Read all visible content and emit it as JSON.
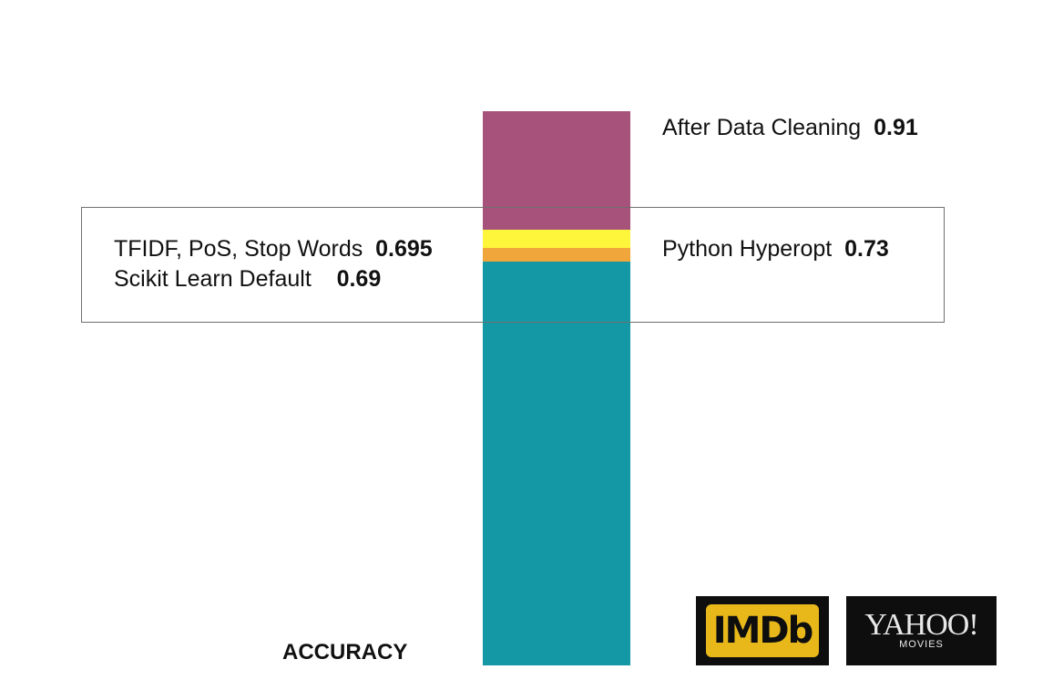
{
  "chart_data": {
    "type": "bar",
    "orientation": "vertical-stacked-single",
    "axis_label": "ACCURACY",
    "ylim": [
      0,
      0.91
    ],
    "segments": [
      {
        "label": "Scikit Learn Default",
        "value": 0.69,
        "color": "#1598a6"
      },
      {
        "label": "TFIDF, PoS, Stop Words",
        "value": 0.695,
        "color": "#f0a63a"
      },
      {
        "label": "Python Hyperopt",
        "value": 0.73,
        "color": "#fdf63a"
      },
      {
        "label": "After Data Cleaning",
        "value": 0.91,
        "color": "#a7527b"
      }
    ],
    "grid": false
  },
  "logos": {
    "imdb": "IMDb",
    "yahoo_main": "YAHOO!",
    "yahoo_sub": "MOVIES"
  }
}
